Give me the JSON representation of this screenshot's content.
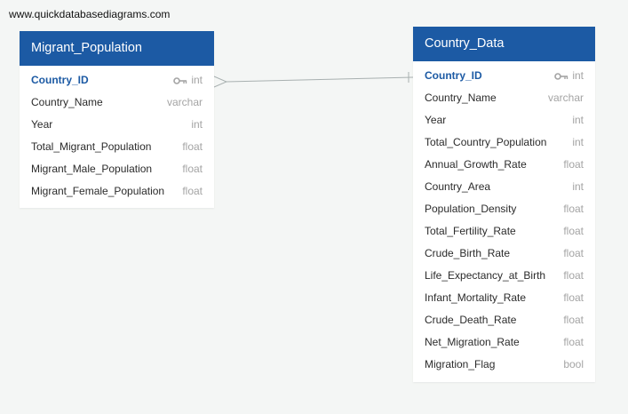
{
  "watermark": "www.quickdatabasediagrams.com",
  "tables": [
    {
      "name": "Migrant_Population",
      "fields": [
        {
          "name": "Country_ID",
          "type": "int",
          "pk": true
        },
        {
          "name": "Country_Name",
          "type": "varchar"
        },
        {
          "name": "Year",
          "type": "int"
        },
        {
          "name": "Total_Migrant_Population",
          "type": "float"
        },
        {
          "name": "Migrant_Male_Population",
          "type": "float"
        },
        {
          "name": "Migrant_Female_Population",
          "type": "float"
        }
      ]
    },
    {
      "name": "Country_Data",
      "fields": [
        {
          "name": "Country_ID",
          "type": "int",
          "pk": true
        },
        {
          "name": "Country_Name",
          "type": "varchar"
        },
        {
          "name": "Year",
          "type": "int"
        },
        {
          "name": "Total_Country_Population",
          "type": "int"
        },
        {
          "name": "Annual_Growth_Rate",
          "type": "float"
        },
        {
          "name": "Country_Area",
          "type": "int"
        },
        {
          "name": "Population_Density",
          "type": "float"
        },
        {
          "name": "Total_Fertility_Rate",
          "type": "float"
        },
        {
          "name": "Crude_Birth_Rate",
          "type": "float"
        },
        {
          "name": "Life_Expectancy_at_Birth",
          "type": "float"
        },
        {
          "name": "Infant_Mortality_Rate",
          "type": "float"
        },
        {
          "name": "Crude_Death_Rate",
          "type": "float"
        },
        {
          "name": "Net_Migration_Rate",
          "type": "float"
        },
        {
          "name": "Migration_Flag",
          "type": "bool"
        }
      ]
    }
  ],
  "colors": {
    "header": "#1c5aa4",
    "primary_key": "#1c5aa4",
    "type_text": "#a4a4a4",
    "connector": "#a8b0b0"
  },
  "relationship": {
    "from": "Migrant_Population.Country_ID",
    "to": "Country_Data.Country_ID",
    "from_end": "many",
    "to_end": "one"
  }
}
